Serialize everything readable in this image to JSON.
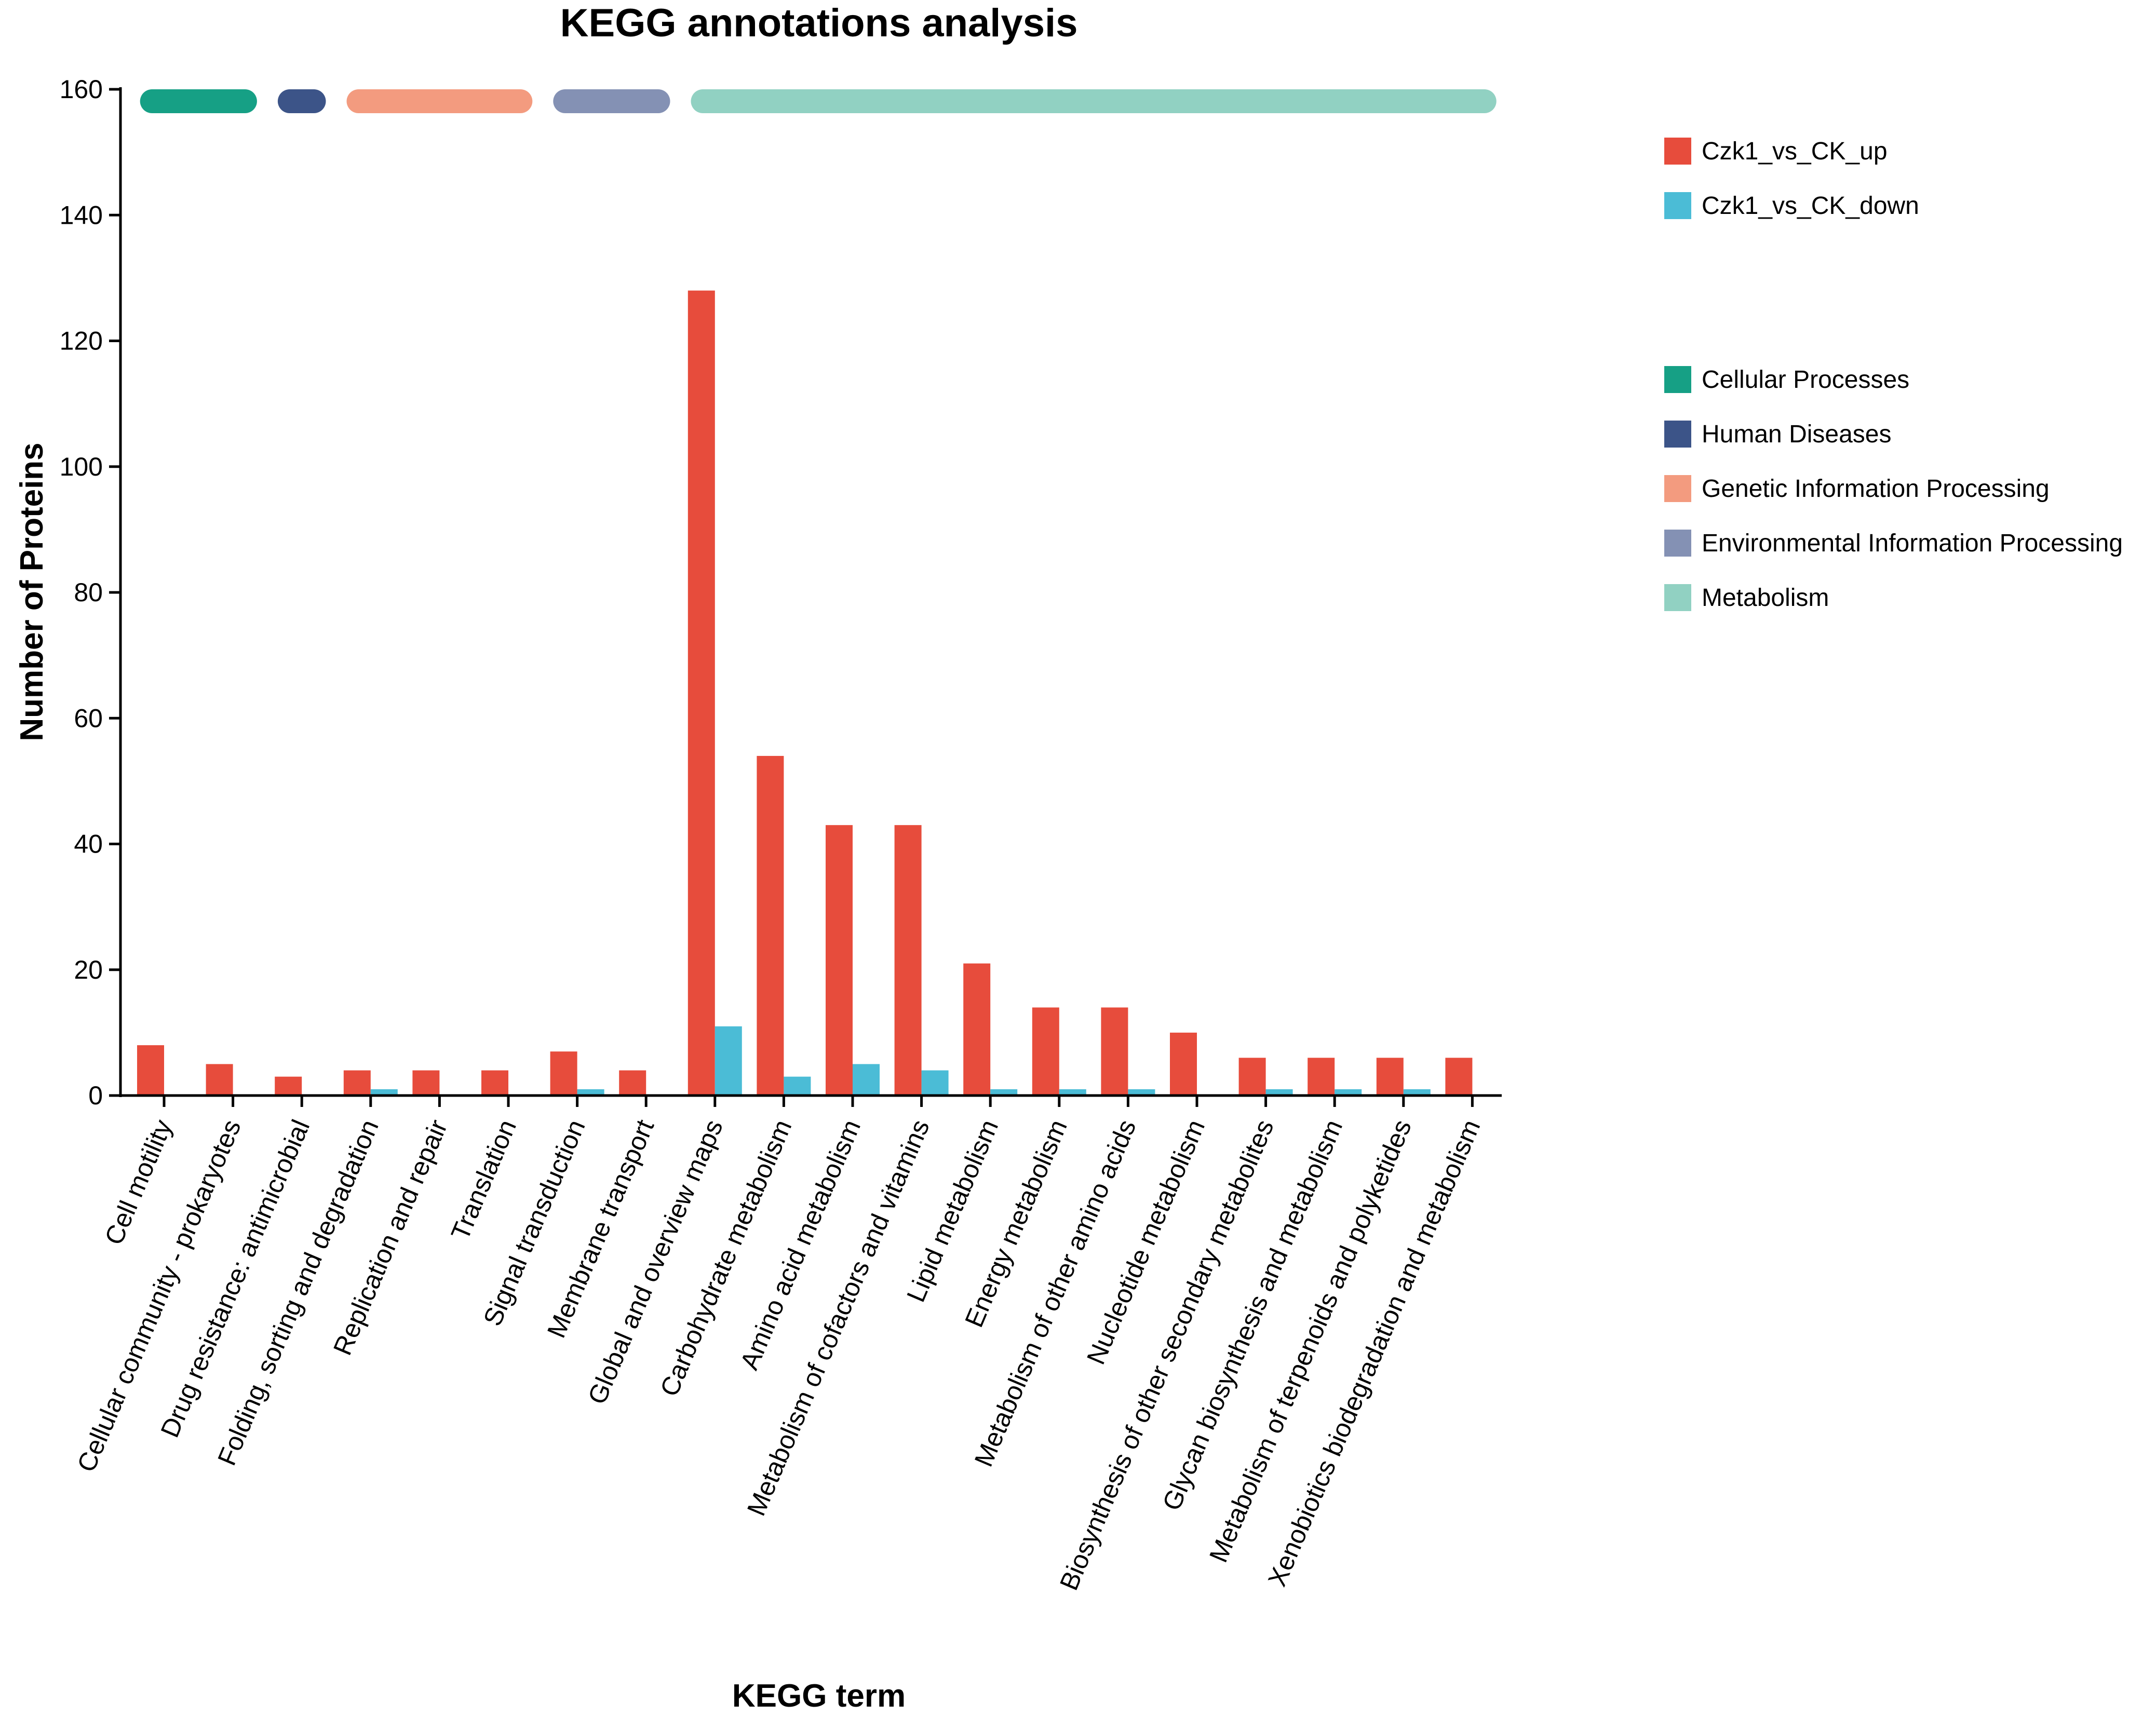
{
  "chart_data": {
    "type": "bar",
    "title": "KEGG annotations analysis",
    "xlabel": "KEGG term",
    "ylabel": "Number of Proteins",
    "ylim": [
      0,
      160
    ],
    "yticks": [
      0,
      20,
      40,
      60,
      80,
      100,
      120,
      140,
      160
    ],
    "grid": false,
    "legend_position": "right",
    "categories": [
      "Cell motility",
      "Cellular community - prokaryotes",
      "Drug resistance: antimicrobial",
      "Folding, sorting and degradation",
      "Replication and repair",
      "Translation",
      "Signal transduction",
      "Membrane transport",
      "Global and overview maps",
      "Carbohydrate metabolism",
      "Amino acid metabolism",
      "Metabolism of cofactors and vitamins",
      "Lipid metabolism",
      "Energy metabolism",
      "Metabolism of other amino acids",
      "Nucleotide metabolism",
      "Biosynthesis of other secondary metabolites",
      "Glycan biosynthesis and metabolism",
      "Metabolism of terpenoids and polyketides",
      "Xenobiotics biodegradation and metabolism"
    ],
    "series": [
      {
        "name": "Czk1_vs_CK_up",
        "color": "#e74c3c",
        "values": [
          8,
          5,
          3,
          4,
          4,
          4,
          7,
          4,
          128,
          54,
          43,
          43,
          21,
          14,
          14,
          10,
          6,
          6,
          6,
          6
        ]
      },
      {
        "name": "Czk1_vs_CK_down",
        "color": "#4bbcd6",
        "values": [
          0,
          0,
          0,
          1,
          0,
          0,
          1,
          0,
          11,
          3,
          5,
          4,
          1,
          1,
          1,
          0,
          1,
          1,
          1,
          0
        ]
      }
    ],
    "groups": [
      {
        "name": "Cellular Processes",
        "color": "#16a085",
        "categories": [
          0,
          1
        ]
      },
      {
        "name": "Human Diseases",
        "color": "#3c5488",
        "categories": [
          2,
          2
        ]
      },
      {
        "name": "Genetic Information Processing",
        "color": "#f39b7f",
        "categories": [
          3,
          5
        ]
      },
      {
        "name": "Environmental Information Processing",
        "color": "#8491b4",
        "categories": [
          6,
          7
        ]
      },
      {
        "name": "Metabolism",
        "color": "#91d1c2",
        "categories": [
          8,
          19
        ]
      }
    ]
  }
}
